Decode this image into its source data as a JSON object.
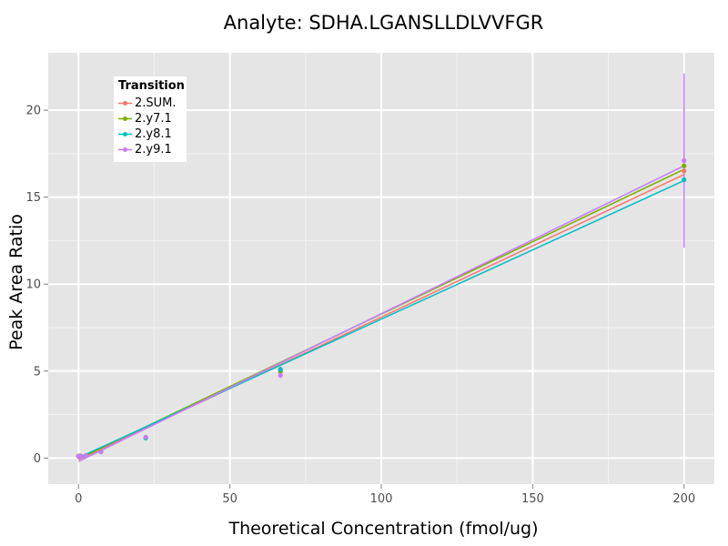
{
  "chart_data": {
    "type": "line",
    "title": "Analyte: SDHA.LGANSLLDLVVFGR",
    "xlabel": "Theoretical Concentration (fmol/ug)",
    "ylabel": "Peak Area Ratio",
    "xlim": [
      -10,
      210
    ],
    "ylim": [
      -1.5,
      23.3
    ],
    "x_ticks": [
      0,
      50,
      100,
      150,
      200
    ],
    "y_ticks": [
      0,
      5,
      10,
      15,
      20
    ],
    "grid": true,
    "legend_title": "Transition",
    "legend_position": "top-left",
    "x_concentrations": [
      0,
      0.1,
      0.3,
      0.8,
      2.5,
      7.4,
      22.2,
      66.7,
      200
    ],
    "series": [
      {
        "name": "2.SUM.",
        "color": "#F8766D",
        "points": [
          [
            0,
            0.12
          ],
          [
            0.1,
            0.1
          ],
          [
            0.3,
            0.1
          ],
          [
            0.8,
            0.12
          ],
          [
            2.5,
            0.15
          ],
          [
            7.4,
            0.38
          ],
          [
            22.2,
            1.18
          ],
          [
            66.7,
            4.95
          ],
          [
            200,
            16.5
          ]
        ],
        "errors": [
          [
            0,
            0.05
          ],
          [
            0.1,
            0.04
          ],
          [
            0.3,
            0.04
          ],
          [
            0.8,
            0.05
          ],
          [
            2.5,
            0.05
          ],
          [
            7.4,
            0.07
          ],
          [
            22.2,
            0.1
          ],
          [
            66.7,
            0.15
          ],
          [
            200,
            1.0
          ]
        ],
        "fit": [
          [
            0,
            -0.1
          ],
          [
            200,
            16.3
          ]
        ]
      },
      {
        "name": "2.y7.1",
        "color": "#7CAE00",
        "points": [
          [
            0,
            0.11
          ],
          [
            0.1,
            0.1
          ],
          [
            0.3,
            0.1
          ],
          [
            0.8,
            0.11
          ],
          [
            2.5,
            0.14
          ],
          [
            7.4,
            0.37
          ],
          [
            22.2,
            1.17
          ],
          [
            66.7,
            5.0
          ],
          [
            200,
            16.8
          ]
        ],
        "errors": [
          [
            0,
            0.05
          ],
          [
            0.1,
            0.04
          ],
          [
            0.3,
            0.04
          ],
          [
            0.8,
            0.05
          ],
          [
            2.5,
            0.05
          ],
          [
            7.4,
            0.07
          ],
          [
            22.2,
            0.1
          ],
          [
            66.7,
            0.15
          ],
          [
            200,
            1.0
          ]
        ],
        "fit": [
          [
            0,
            -0.05
          ],
          [
            200,
            16.6
          ]
        ]
      },
      {
        "name": "2.y8.1",
        "color": "#00BFC4",
        "points": [
          [
            0,
            0.1
          ],
          [
            0.1,
            0.09
          ],
          [
            0.3,
            0.09
          ],
          [
            0.8,
            0.1
          ],
          [
            2.5,
            0.13
          ],
          [
            7.4,
            0.36
          ],
          [
            22.2,
            1.15
          ],
          [
            66.7,
            5.1
          ],
          [
            200,
            16.0
          ]
        ],
        "errors": [
          [
            0,
            0.05
          ],
          [
            0.1,
            0.04
          ],
          [
            0.3,
            0.04
          ],
          [
            0.8,
            0.05
          ],
          [
            2.5,
            0.05
          ],
          [
            7.4,
            0.07
          ],
          [
            22.2,
            0.1
          ],
          [
            66.7,
            0.15
          ],
          [
            200,
            0.25
          ]
        ],
        "fit": [
          [
            0,
            0.02
          ],
          [
            200,
            15.95
          ]
        ]
      },
      {
        "name": "2.y9.1",
        "color": "#C77CFF",
        "points": [
          [
            0,
            0.1
          ],
          [
            0.1,
            0.08
          ],
          [
            0.3,
            0.08
          ],
          [
            0.8,
            0.1
          ],
          [
            2.5,
            0.12
          ],
          [
            7.4,
            0.35
          ],
          [
            22.2,
            1.2
          ],
          [
            66.7,
            4.75
          ],
          [
            200,
            17.1
          ]
        ],
        "errors": [
          [
            0,
            0.05
          ],
          [
            0.1,
            0.04
          ],
          [
            0.3,
            0.04
          ],
          [
            0.8,
            0.05
          ],
          [
            2.5,
            0.05
          ],
          [
            7.4,
            0.07
          ],
          [
            22.2,
            0.1
          ],
          [
            66.7,
            0.15
          ],
          [
            200,
            5.0
          ]
        ],
        "fit": [
          [
            0,
            -0.2
          ],
          [
            200,
            16.8
          ]
        ]
      }
    ]
  }
}
